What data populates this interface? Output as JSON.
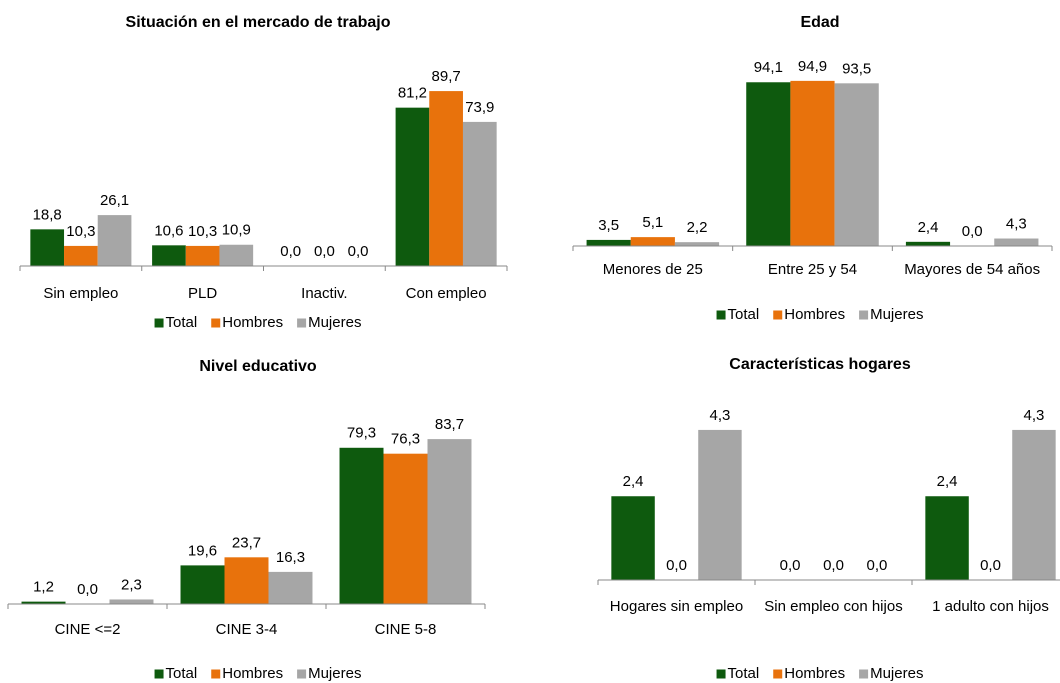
{
  "chart_data": [
    {
      "type": "bar",
      "title": "Situación en el mercado de trabajo",
      "categories": [
        "Sin empleo",
        "PLD",
        "Inactiv.",
        "Con empleo"
      ],
      "series": [
        {
          "name": "Total",
          "color": "#0e5a0e",
          "values": [
            18.8,
            10.6,
            0,
            81.2
          ],
          "value_labels": [
            "18,8",
            "10,6",
            "0,0",
            "81,2"
          ]
        },
        {
          "name": "Hombres",
          "color": "#e8720c",
          "values": [
            10.3,
            10.3,
            0,
            89.7
          ],
          "value_labels": [
            "10,3",
            "10,3",
            "0,0",
            "89,7"
          ]
        },
        {
          "name": "Mujeres",
          "color": "#a6a6a6",
          "values": [
            26.1,
            10.9,
            0,
            73.9
          ],
          "value_labels": [
            "26,1",
            "10,9",
            "0,0",
            "73,9"
          ]
        }
      ]
    },
    {
      "type": "bar",
      "title": "Edad",
      "categories": [
        "Menores de 25",
        "Entre 25 y 54",
        "Mayores de 54 años"
      ],
      "series": [
        {
          "name": "Total",
          "color": "#0e5a0e",
          "values": [
            3.5,
            94.1,
            2.4
          ],
          "value_labels": [
            "3,5",
            "94,1",
            "2,4"
          ]
        },
        {
          "name": "Hombres",
          "color": "#e8720c",
          "values": [
            5.1,
            94.9,
            0
          ],
          "value_labels": [
            "5,1",
            "94,9",
            "0,0"
          ]
        },
        {
          "name": "Mujeres",
          "color": "#a6a6a6",
          "values": [
            2.2,
            93.5,
            4.3
          ],
          "value_labels": [
            "2,2",
            "93,5",
            "4,3"
          ]
        }
      ]
    },
    {
      "type": "bar",
      "title": "Nivel educativo",
      "categories": [
        "CINE <=2",
        "CINE 3-4",
        "CINE 5-8"
      ],
      "series": [
        {
          "name": "Total",
          "color": "#0e5a0e",
          "values": [
            1.2,
            19.6,
            79.3
          ],
          "value_labels": [
            "1,2",
            "19,6",
            "79,3"
          ]
        },
        {
          "name": "Hombres",
          "color": "#e8720c",
          "values": [
            0,
            23.7,
            76.3
          ],
          "value_labels": [
            "0,0",
            "23,7",
            "76,3"
          ]
        },
        {
          "name": "Mujeres",
          "color": "#a6a6a6",
          "values": [
            2.3,
            16.3,
            83.7
          ],
          "value_labels": [
            "2,3",
            "16,3",
            "83,7"
          ]
        }
      ]
    },
    {
      "type": "bar",
      "title": "Características hogares",
      "categories": [
        "Hogares sin empleo",
        "Sin empleo con hijos",
        "1 adulto con hijos"
      ],
      "series": [
        {
          "name": "Total",
          "color": "#0e5a0e",
          "values": [
            2.4,
            0,
            2.4
          ],
          "value_labels": [
            "2,4",
            "0,0",
            "2,4"
          ]
        },
        {
          "name": "Hombres",
          "color": "#e8720c",
          "values": [
            0,
            0,
            0
          ],
          "value_labels": [
            "0,0",
            "0,0",
            "0,0"
          ]
        },
        {
          "name": "Mujeres",
          "color": "#a6a6a6",
          "values": [
            4.3,
            0,
            4.3
          ],
          "value_labels": [
            "4,3",
            "0,0",
            "4,3"
          ]
        }
      ]
    }
  ]
}
